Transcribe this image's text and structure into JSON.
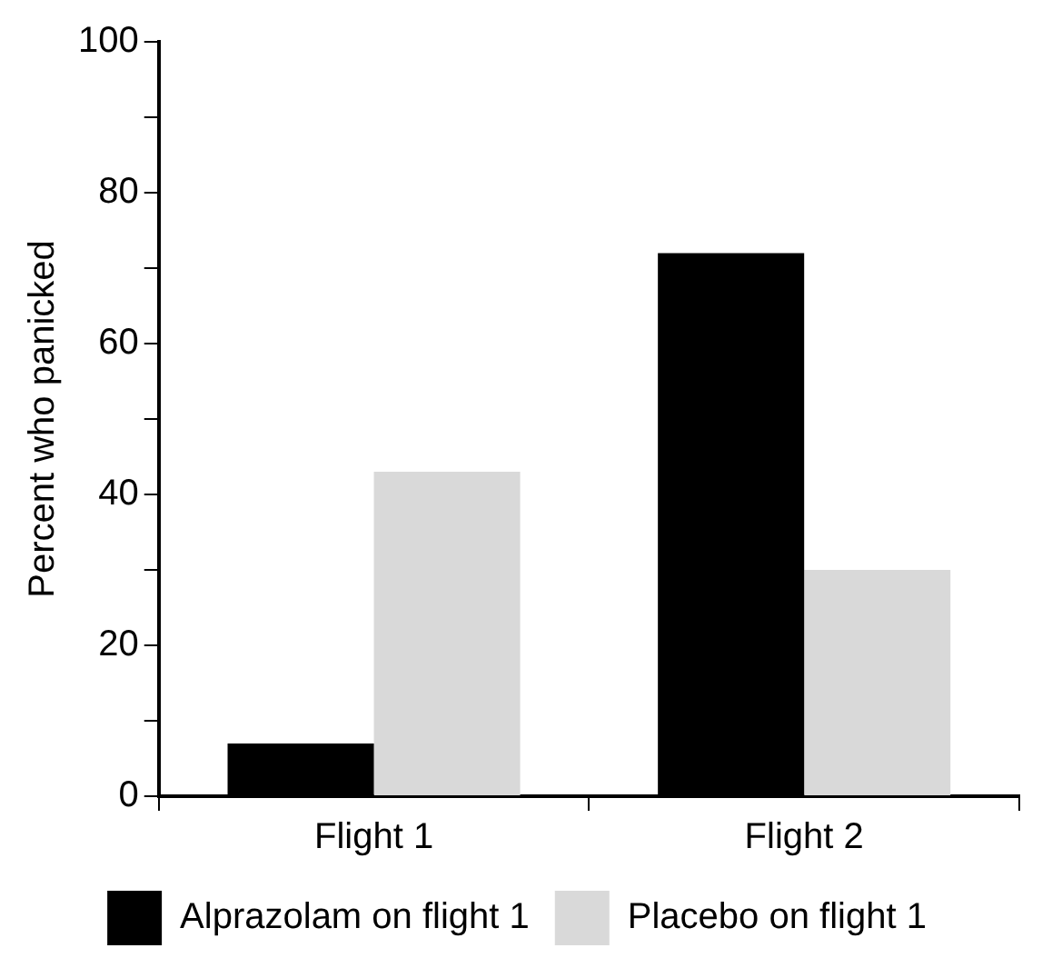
{
  "chart_data": {
    "type": "bar",
    "ylabel": "Percent who panicked",
    "categories": [
      "Flight 1",
      "Flight 2"
    ],
    "series": [
      {
        "name": "Alprazolam on flight 1",
        "color": "#000000",
        "values": [
          7,
          72
        ]
      },
      {
        "name": "Placebo on flight 1",
        "color": "#d9d9d9",
        "values": [
          43,
          30
        ]
      }
    ],
    "ylim": [
      0,
      100
    ],
    "yticks": [
      0,
      {
        "value": 10,
        "label": null
      },
      20,
      {
        "value": 30,
        "label": null
      },
      40,
      {
        "value": 50,
        "label": null
      },
      60,
      {
        "value": 70,
        "label": null
      },
      80,
      {
        "value": 90,
        "label": null
      },
      100
    ],
    "grid": false,
    "legend": "bottom"
  }
}
